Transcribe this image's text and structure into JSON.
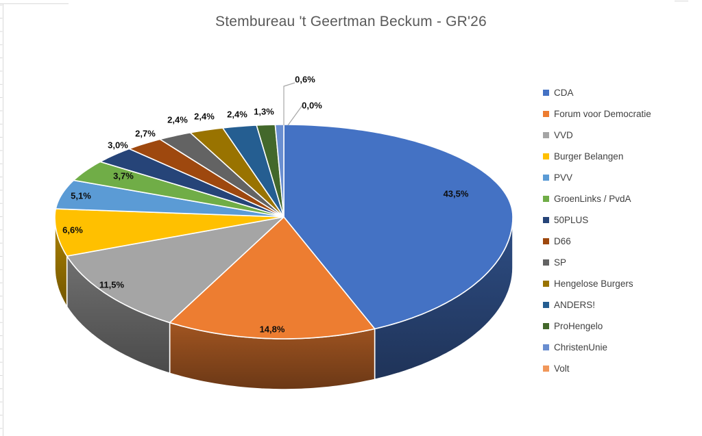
{
  "chart": {
    "title": "Stembureau 't Geertman Beckum - GR'26"
  },
  "chart_data": {
    "type": "pie",
    "effect": "3d",
    "title": "Stembureau 't Geertman Beckum - GR'26",
    "direction": "clockwise",
    "start_angle_deg": 0,
    "legend_position": "right",
    "value_format": "percent, comma decimal separator",
    "grid": "off",
    "slices": [
      {
        "label": "CDA",
        "value_pct": 43.5,
        "display": "43,5%",
        "color": "#4472C4"
      },
      {
        "label": "Forum voor Democratie",
        "value_pct": 14.8,
        "display": "14,8%",
        "color": "#ED7D31"
      },
      {
        "label": "VVD",
        "value_pct": 11.5,
        "display": "11,5%",
        "color": "#A5A5A5"
      },
      {
        "label": "Burger Belangen",
        "value_pct": 6.6,
        "display": "6,6%",
        "color": "#FFC000"
      },
      {
        "label": "PVV",
        "value_pct": 5.1,
        "display": "5,1%",
        "color": "#5B9BD5"
      },
      {
        "label": "GroenLinks / PvdA",
        "value_pct": 3.7,
        "display": "3,7%",
        "color": "#70AD47"
      },
      {
        "label": "50PLUS",
        "value_pct": 3.0,
        "display": "3,0%",
        "color": "#264478"
      },
      {
        "label": "D66",
        "value_pct": 2.7,
        "display": "2,7%",
        "color": "#9E480E"
      },
      {
        "label": "SP",
        "value_pct": 2.4,
        "display": "2,4%",
        "color": "#636363"
      },
      {
        "label": "Hengelose Burgers",
        "value_pct": 2.4,
        "display": "2,4%",
        "color": "#997300"
      },
      {
        "label": "ANDERS!",
        "value_pct": 2.4,
        "display": "2,4%",
        "color": "#255E91"
      },
      {
        "label": "ProHengelo",
        "value_pct": 1.3,
        "display": "1,3%",
        "color": "#43682B"
      },
      {
        "label": "ChristenUnie",
        "value_pct": 0.6,
        "display": "0,6%",
        "color": "#698ED0"
      },
      {
        "label": "Volt",
        "value_pct": 0.0,
        "display": "0,0%",
        "color": "#F1975A"
      }
    ]
  }
}
